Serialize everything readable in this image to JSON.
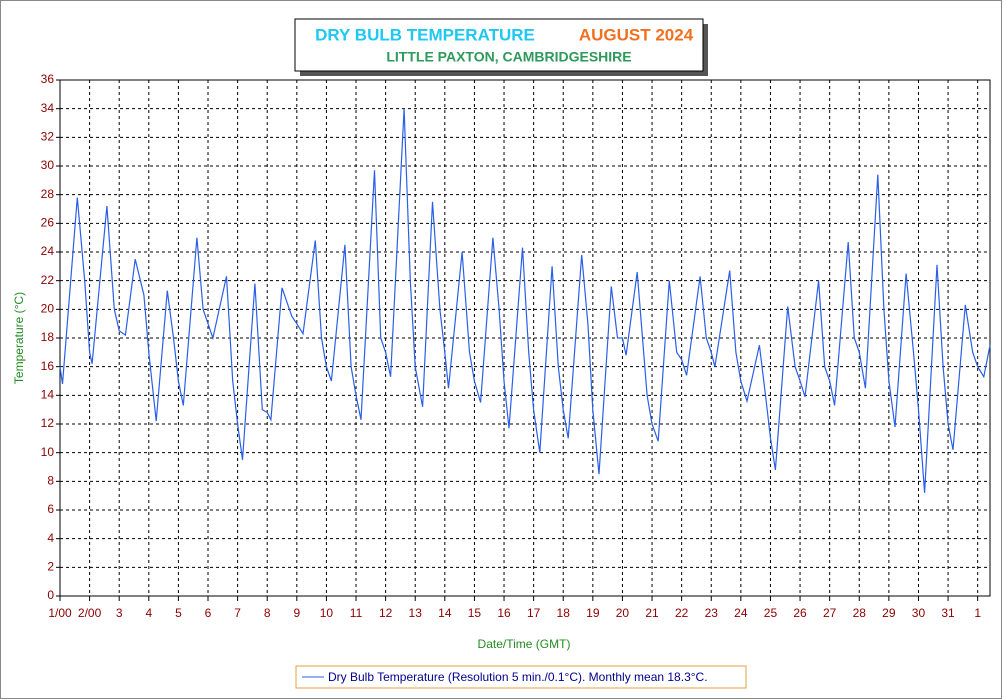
{
  "chart_data": {
    "type": "line",
    "title": "DRY BULB TEMPERATURE",
    "title_month": "AUGUST 2024",
    "subtitle": "LITTLE PAXTON, CAMBRIDGESHIRE",
    "ylabel": "Temperature (°C)",
    "xlabel": "Date/Time (GMT)",
    "grid": true,
    "legend": "bottom",
    "x": [
      0,
      2,
      14,
      20,
      24,
      26,
      38,
      44,
      48,
      53,
      61,
      68,
      72,
      78,
      87,
      92,
      96,
      100,
      111,
      116,
      120,
      124,
      135,
      140,
      144,
      148,
      158,
      164,
      168,
      171,
      180,
      188,
      192,
      197,
      207,
      212,
      216,
      220,
      231,
      236,
      240,
      244,
      255,
      260,
      264,
      268,
      279,
      284,
      288,
      294,
      302,
      308,
      312,
      315,
      326,
      332,
      336,
      341,
      351,
      356,
      360,
      364,
      375,
      380,
      384,
      389,
      399,
      404,
      408,
      412,
      423,
      428,
      432,
      437,
      447,
      452,
      456,
      459,
      468,
      476,
      480,
      485,
      494,
      500,
      504,
      508,
      519,
      524,
      528,
      531,
      543,
      548,
      552,
      557,
      567,
      572,
      576,
      580,
      590,
      596,
      600,
      604,
      615,
      620,
      624,
      628,
      639,
      644,
      648,
      653,
      663,
      668,
      672,
      677,
      686,
      692,
      696,
      701,
      711,
      716,
      720,
      724,
      734,
      740,
      744,
      749,
      754
    ],
    "series": [
      {
        "name": "Dry Bulb Temperature (Resolution 5 min./0.1°C). Monthly mean 18.3°C.",
        "color": "#2a5fe8",
        "values": [
          16,
          14.8,
          27.8,
          22,
          17,
          16.2,
          27.2,
          20,
          18.5,
          18.2,
          23.5,
          21,
          17,
          12.2,
          21.3,
          18,
          15,
          13.3,
          25,
          20,
          19,
          18,
          22.3,
          15,
          12,
          9.5,
          21.8,
          13,
          12.8,
          12.3,
          21.5,
          19.5,
          19,
          18.3,
          24.8,
          18,
          16,
          15,
          24.5,
          16,
          14,
          12.3,
          29.7,
          18,
          17,
          15.3,
          34,
          22,
          16,
          13.2,
          27.5,
          20,
          17,
          14.5,
          24,
          17,
          15,
          13.5,
          25,
          20,
          15,
          11.7,
          24.3,
          17,
          13,
          10,
          23,
          16,
          13,
          11,
          23.8,
          19,
          13,
          8.5,
          21.6,
          18,
          18,
          16.8,
          22.6,
          14,
          12,
          10.8,
          22,
          17,
          16.5,
          15.4,
          22.3,
          18,
          17,
          16,
          22.7,
          17,
          15,
          13.6,
          17.5,
          14,
          11,
          8.8,
          20.2,
          16,
          15,
          13.9,
          22,
          16,
          15,
          13.3,
          24.7,
          18,
          17,
          14.5,
          29.4,
          20,
          15,
          11.8,
          22.5,
          17,
          13,
          7.2,
          23.1,
          16,
          12,
          10.2,
          20.3,
          17,
          16,
          15.3,
          17.5
        ]
      }
    ],
    "xlim": [
      0,
      754
    ],
    "ylim": [
      0,
      36
    ],
    "yticks": [
      0,
      2,
      4,
      6,
      8,
      10,
      12,
      14,
      16,
      18,
      20,
      22,
      24,
      26,
      28,
      30,
      32,
      34,
      36
    ],
    "xticks": [
      {
        "value": 0,
        "label": "1/00"
      },
      {
        "value": 24,
        "label": "2/00"
      },
      {
        "value": 48,
        "label": "3"
      },
      {
        "value": 72,
        "label": "4"
      },
      {
        "value": 96,
        "label": "5"
      },
      {
        "value": 120,
        "label": "6"
      },
      {
        "value": 144,
        "label": "7"
      },
      {
        "value": 168,
        "label": "8"
      },
      {
        "value": 192,
        "label": "9"
      },
      {
        "value": 216,
        "label": "10"
      },
      {
        "value": 240,
        "label": "11"
      },
      {
        "value": 264,
        "label": "12"
      },
      {
        "value": 288,
        "label": "13"
      },
      {
        "value": 312,
        "label": "14"
      },
      {
        "value": 336,
        "label": "15"
      },
      {
        "value": 360,
        "label": "16"
      },
      {
        "value": 384,
        "label": "17"
      },
      {
        "value": 408,
        "label": "18"
      },
      {
        "value": 432,
        "label": "19"
      },
      {
        "value": 456,
        "label": "20"
      },
      {
        "value": 480,
        "label": "21"
      },
      {
        "value": 504,
        "label": "22"
      },
      {
        "value": 528,
        "label": "23"
      },
      {
        "value": 552,
        "label": "24"
      },
      {
        "value": 576,
        "label": "25"
      },
      {
        "value": 600,
        "label": "26"
      },
      {
        "value": 624,
        "label": "27"
      },
      {
        "value": 648,
        "label": "28"
      },
      {
        "value": 672,
        "label": "29"
      },
      {
        "value": 696,
        "label": "30"
      },
      {
        "value": 720,
        "label": "31"
      },
      {
        "value": 744,
        "label": "1"
      }
    ]
  }
}
